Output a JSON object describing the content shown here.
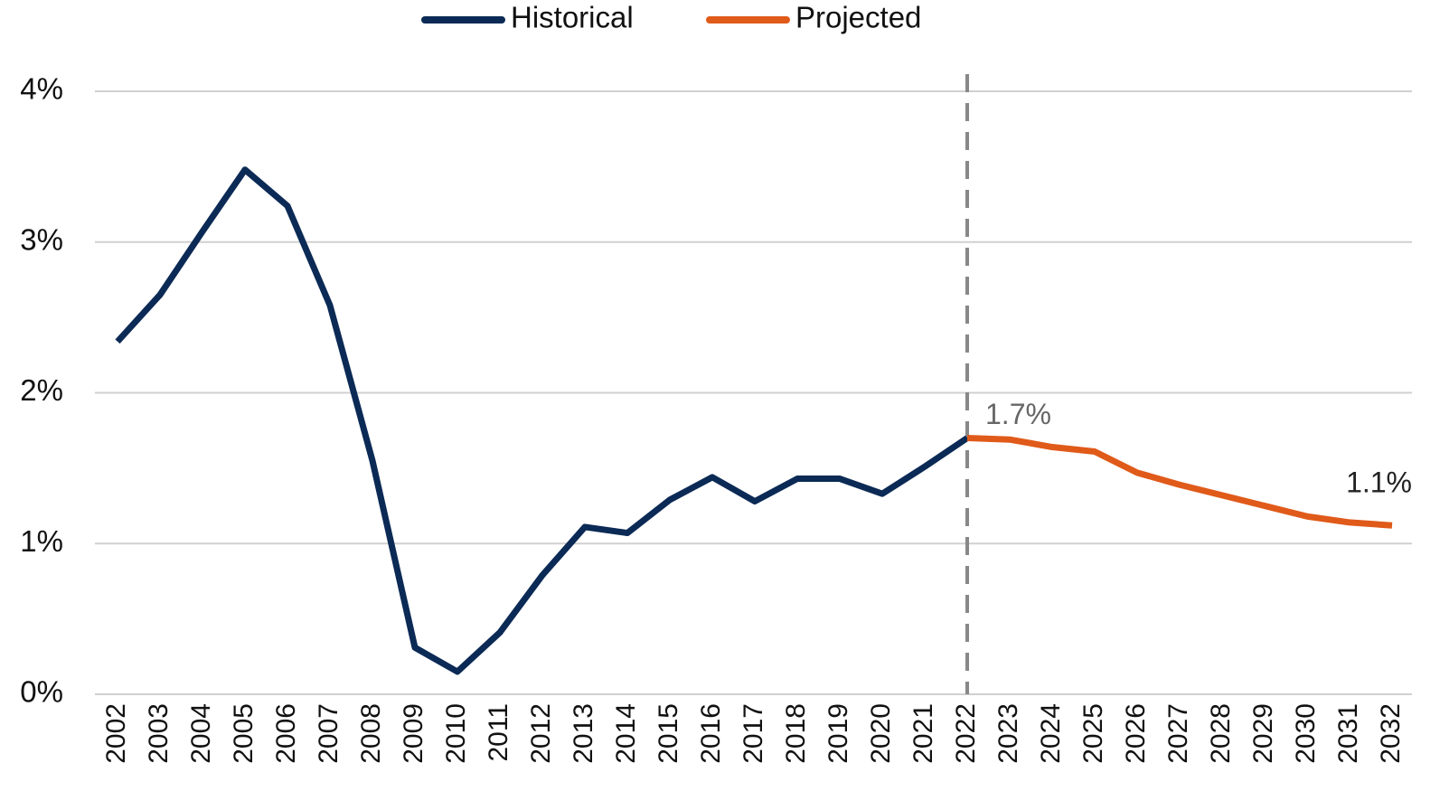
{
  "chart_data": {
    "type": "line",
    "categories": [
      "2002",
      "2003",
      "2004",
      "2005",
      "2006",
      "2007",
      "2008",
      "2009",
      "2010",
      "2011",
      "2012",
      "2013",
      "2014",
      "2015",
      "2016",
      "2017",
      "2018",
      "2019",
      "2020",
      "2021",
      "2022",
      "2023",
      "2024",
      "2025",
      "2026",
      "2027",
      "2028",
      "2029",
      "2030",
      "2031",
      "2032"
    ],
    "series": [
      {
        "name": "Historical",
        "color": "#0b2a55",
        "values": [
          2.34,
          2.65,
          3.07,
          3.48,
          3.24,
          2.58,
          1.55,
          0.31,
          0.15,
          0.41,
          0.79,
          1.11,
          1.07,
          1.29,
          1.44,
          1.28,
          1.43,
          1.43,
          1.33,
          1.51,
          1.7,
          null,
          null,
          null,
          null,
          null,
          null,
          null,
          null,
          null,
          null
        ]
      },
      {
        "name": "Projected",
        "color": "#e05a1a",
        "values": [
          null,
          null,
          null,
          null,
          null,
          null,
          null,
          null,
          null,
          null,
          null,
          null,
          null,
          null,
          null,
          null,
          null,
          null,
          null,
          null,
          1.7,
          1.69,
          1.64,
          1.61,
          1.47,
          1.39,
          1.32,
          1.25,
          1.18,
          1.14,
          1.12
        ],
        "value_labels": [
          null,
          null,
          null,
          null,
          null,
          null,
          null,
          null,
          null,
          null,
          null,
          null,
          null,
          null,
          null,
          null,
          null,
          null,
          null,
          null,
          "1.7%",
          null,
          null,
          null,
          null,
          null,
          null,
          null,
          null,
          null,
          "1.1%"
        ]
      }
    ],
    "ylim": [
      0,
      4
    ],
    "yticks": [
      {
        "value": 0,
        "label": "0%"
      },
      {
        "value": 1,
        "label": "1%"
      },
      {
        "value": 2,
        "label": "2%"
      },
      {
        "value": 3,
        "label": "3%"
      },
      {
        "value": 4,
        "label": "4%"
      }
    ],
    "grid": true,
    "legend": "top",
    "divider": "2022"
  }
}
